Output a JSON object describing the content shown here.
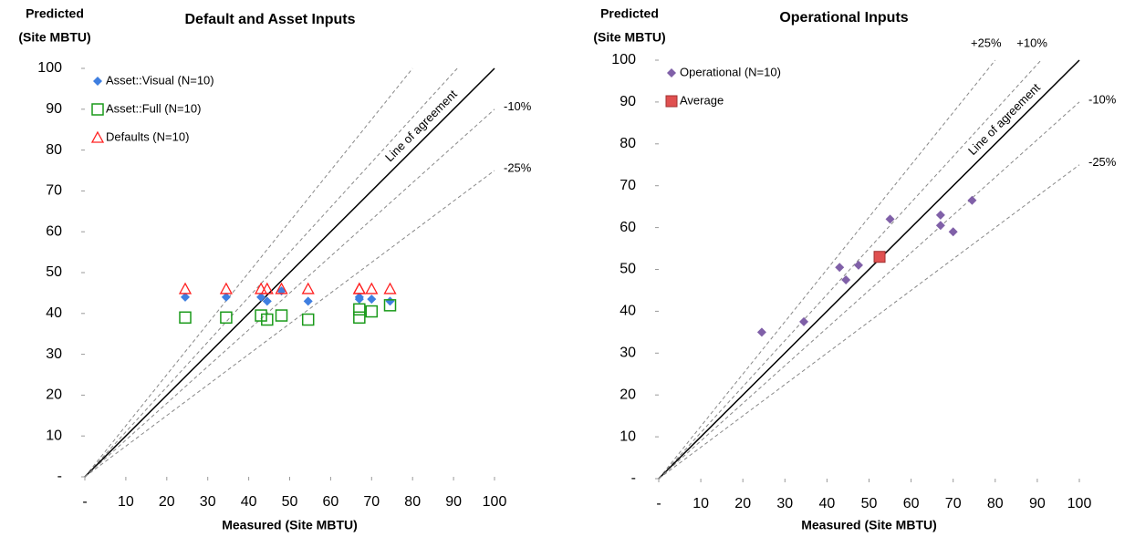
{
  "chart_data": [
    {
      "type": "scatter",
      "title": "Default and Asset Inputs",
      "ylabel": [
        "Predicted",
        "(Site MBTU)"
      ],
      "xlabel": "Measured (Site MBTU)",
      "xlim": [
        0,
        100
      ],
      "ylim": [
        0,
        100
      ],
      "xticks": [
        {
          "value": 0,
          "label": "-"
        },
        10,
        20,
        30,
        40,
        50,
        60,
        70,
        80,
        90,
        100
      ],
      "yticks": [
        {
          "value": 0,
          "label": "-"
        },
        10,
        20,
        30,
        40,
        50,
        60,
        70,
        80,
        90,
        100
      ],
      "grid": false,
      "legend": "upper left",
      "reference_lines": [
        {
          "slope": 1.25
        },
        {
          "slope": 1.1
        },
        {
          "slope": 1,
          "label": "Line of agreement"
        },
        {
          "slope": 0.9,
          "label": "-10%"
        },
        {
          "slope": 0.75,
          "label": "-25%"
        }
      ],
      "series": [
        {
          "name": "Asset::Visual (N=10)",
          "color": "#3f7fe0",
          "marker": "diamond",
          "x": [
            24.5,
            34.5,
            43,
            44.5,
            48,
            54.5,
            67,
            67,
            70,
            74.5
          ],
          "values": [
            44,
            44,
            44,
            43,
            45.5,
            43,
            44,
            43.5,
            43.5,
            43
          ]
        },
        {
          "name": "Asset::Full (N=10)",
          "color": "#1a9a1a",
          "marker": "square-open",
          "x": [
            24.5,
            34.5,
            43,
            44.5,
            48,
            54.5,
            67,
            67,
            70,
            74.5
          ],
          "values": [
            39,
            39,
            39.5,
            38.5,
            39.5,
            38.5,
            41,
            39,
            40.5,
            42
          ]
        },
        {
          "name": "Defaults (N=10)",
          "color": "#ff2020",
          "marker": "triangle-open",
          "x": [
            24.5,
            34.5,
            43,
            44.5,
            48,
            54.5,
            67,
            67,
            70,
            74.5
          ],
          "values": [
            46,
            46,
            46,
            46,
            46,
            46,
            46,
            46,
            46,
            46
          ]
        }
      ]
    },
    {
      "type": "scatter",
      "title": "Operational Inputs",
      "ylabel": [
        "Predicted",
        "(Site MBTU)"
      ],
      "xlabel": "Measured (Site MBTU)",
      "xlim": [
        0,
        100
      ],
      "ylim": [
        0,
        100
      ],
      "xticks": [
        {
          "value": 0,
          "label": "-"
        },
        10,
        20,
        30,
        40,
        50,
        60,
        70,
        80,
        90,
        100
      ],
      "yticks": [
        {
          "value": 0,
          "label": "-"
        },
        10,
        20,
        30,
        40,
        50,
        60,
        70,
        80,
        90,
        100
      ],
      "grid": false,
      "legend": "upper left",
      "reference_lines": [
        {
          "slope": 1.25,
          "label": "+25%"
        },
        {
          "slope": 1.1,
          "label": "+10%"
        },
        {
          "slope": 1,
          "label": "Line of agreement"
        },
        {
          "slope": 0.9,
          "label": "-10%"
        },
        {
          "slope": 0.75,
          "label": "-25%"
        }
      ],
      "series": [
        {
          "name": "Operational (N=10)",
          "color": "#8060a8",
          "marker": "diamond",
          "x": [
            24.5,
            34.5,
            43,
            44.5,
            47.5,
            55,
            67,
            67,
            70,
            74.5
          ],
          "values": [
            35,
            37.5,
            50.5,
            47.5,
            51,
            62,
            63,
            60.5,
            59,
            66.5
          ]
        },
        {
          "name": "Average",
          "color": "#e05050",
          "marker": "square",
          "x": [
            52.5
          ],
          "values": [
            53
          ]
        }
      ]
    }
  ]
}
